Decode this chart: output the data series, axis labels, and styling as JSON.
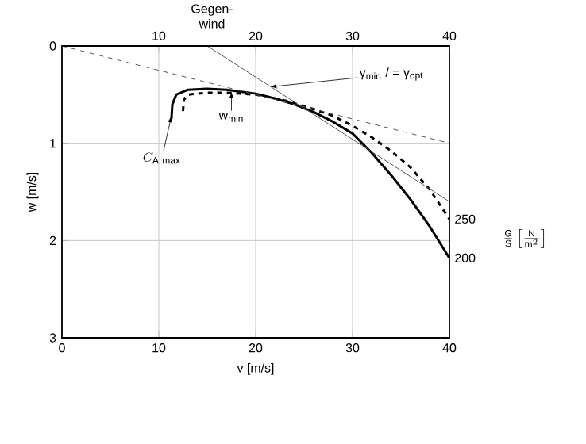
{
  "chart_data": {
    "type": "line",
    "xlabel": "v [m/s]",
    "ylabel": "w [m/s]",
    "legend_title": "\\frac{\\mathrm{G}}{\\mathrm{S}}\\left[\\frac{\\mathrm{N}}{\\mathrm{m}^{2}}\\right]",
    "xlim": [
      0,
      40
    ],
    "xticks": [
      0,
      10,
      20,
      30,
      40
    ],
    "x2lim": [
      0,
      40
    ],
    "x2ticks": [
      10,
      20,
      30,
      40
    ],
    "ylim": [
      3,
      0
    ],
    "yticks": [
      0,
      1,
      2,
      3
    ],
    "grid": true,
    "series": [
      {
        "name": "250",
        "color": "#000000",
        "line_style": "dashed",
        "x": [
          12.5,
          12.6,
          13,
          15,
          17,
          20,
          23,
          26,
          28,
          30,
          32,
          34,
          36,
          38,
          40
        ],
        "values": [
          0.67,
          0.55,
          0.5,
          0.48,
          0.48,
          0.5,
          0.56,
          0.65,
          0.72,
          0.82,
          0.94,
          1.08,
          1.25,
          1.48,
          1.78
        ]
      },
      {
        "name": "200",
        "color": "#000000",
        "line_style": "solid",
        "x": [
          11.3,
          11.4,
          11.8,
          13,
          15,
          17,
          20,
          22,
          24,
          26,
          28,
          30,
          32,
          34,
          36,
          38,
          40
        ],
        "values": [
          0.75,
          0.6,
          0.5,
          0.45,
          0.44,
          0.45,
          0.49,
          0.54,
          0.6,
          0.68,
          0.78,
          0.9,
          1.1,
          1.33,
          1.58,
          1.86,
          2.18
        ]
      },
      {
        "color": "#555555",
        "line_style": "dashed",
        "x": [
          0,
          40
        ],
        "values": [
          0,
          1.0
        ]
      },
      {
        "color": "#555555",
        "line_style": "solid",
        "x": [
          15,
          40
        ],
        "values": [
          0,
          1.6
        ]
      }
    ],
    "annotations": [
      {
        "text": "Gegen-wind",
        "x": 15,
        "y": 0
      },
      {
        "text": "γ$_{min}$ / = γ$_{opt}$",
        "x": 21.5,
        "y": 0.42
      },
      {
        "text": "w$_{min}$",
        "x": 17.5,
        "y": 0.47
      },
      {
        "text": "C_{\\mathrm{A\\ max}}",
        "x": 11.3,
        "y": 0.72
      }
    ]
  }
}
